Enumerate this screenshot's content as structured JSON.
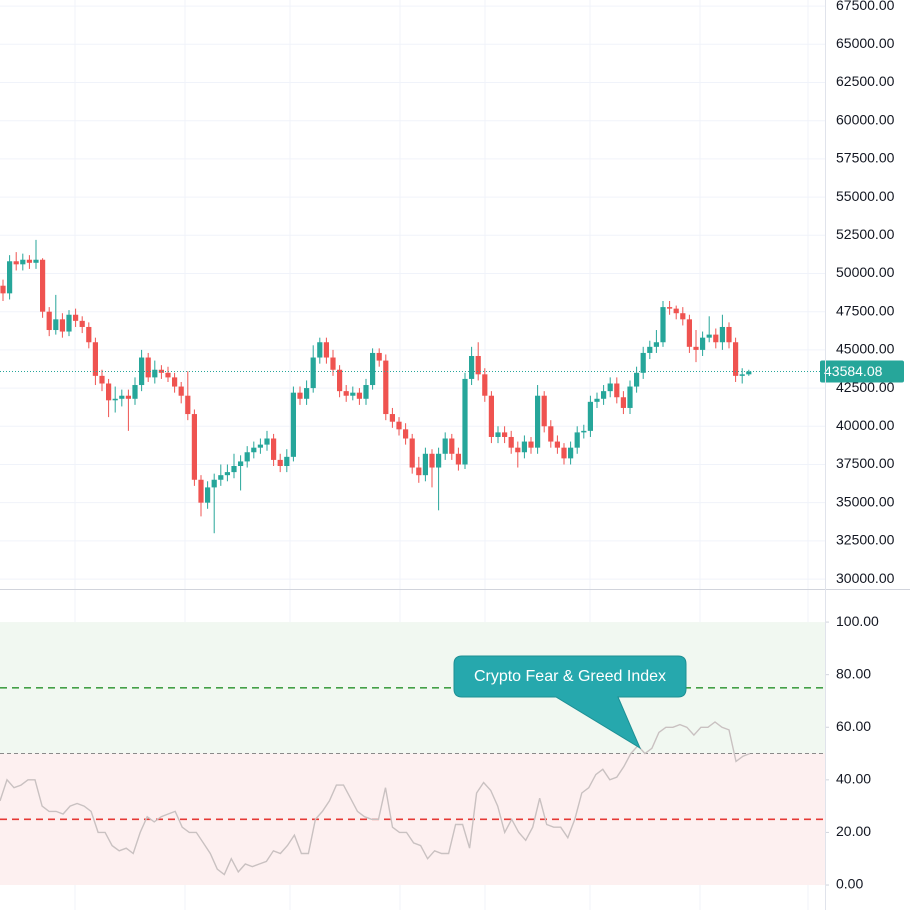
{
  "chart_data": [
    {
      "type": "candlestick",
      "up_color": "#26a69a",
      "down_color": "#ef5350",
      "ylim": [
        29350,
        67900
      ],
      "yticks": [
        {
          "value": 30000,
          "label": "30000.00"
        },
        {
          "value": 32500,
          "label": "32500.00"
        },
        {
          "value": 35000,
          "label": "35000.00"
        },
        {
          "value": 37500,
          "label": "37500.00"
        },
        {
          "value": 40000,
          "label": "40000.00"
        },
        {
          "value": 42500,
          "label": "42500.00"
        },
        {
          "value": 45000,
          "label": "45000.00"
        },
        {
          "value": 47500,
          "label": "47500.00"
        },
        {
          "value": 50000,
          "label": "50000.00"
        },
        {
          "value": 52500,
          "label": "52500.00"
        },
        {
          "value": 55000,
          "label": "55000.00"
        },
        {
          "value": 57500,
          "label": "57500.00"
        },
        {
          "value": 60000,
          "label": "60000.00"
        },
        {
          "value": 62500,
          "label": "62500.00"
        },
        {
          "value": 65000,
          "label": "65000.00"
        },
        {
          "value": 67500,
          "label": "67500.00"
        }
      ],
      "grid": true,
      "last_price": {
        "value": 43584.08,
        "label": "43584.08"
      },
      "open": [
        49200,
        48700,
        50800,
        50600,
        50900,
        50700,
        50900,
        47500,
        46300,
        47000,
        46200,
        47300,
        46900,
        46500,
        45500,
        43300,
        42800,
        41700,
        41800,
        42000,
        41800,
        42700,
        44500,
        43200,
        43700,
        43500,
        43200,
        42600,
        42000,
        40800,
        36500,
        35000,
        36000,
        36500,
        36800,
        37000,
        37400,
        37700,
        38300,
        38600,
        38800,
        39200,
        37800,
        37400,
        38000,
        42200,
        41800,
        42500,
        44500,
        45500,
        44500,
        43700,
        42300,
        42000,
        42200,
        41800,
        42700,
        44800,
        44300,
        40800,
        40300,
        39800,
        39200,
        37300,
        36800,
        38200,
        37300,
        38200,
        39200,
        38200,
        37500,
        43100,
        44600,
        43400,
        42000,
        39300,
        39600,
        39300,
        38600,
        38300,
        39000,
        38600,
        42000,
        40000,
        39000,
        38600,
        37900,
        38600,
        39600,
        39700,
        41600,
        41800,
        42300,
        42800,
        41900,
        41200,
        42600,
        43500,
        44800,
        45200,
        45500,
        47800,
        47700,
        47400,
        47000,
        45200,
        45000,
        45800,
        46000,
        45500,
        46500,
        45500,
        43300,
        43400
      ],
      "high": [
        49600,
        51200,
        51400,
        51300,
        51200,
        52200,
        51000,
        47800,
        48600,
        47400,
        47600,
        47700,
        47200,
        46800,
        45800,
        43700,
        43100,
        42600,
        42400,
        42400,
        43200,
        45000,
        44800,
        44300,
        44000,
        43900,
        43500,
        42900,
        43600,
        41100,
        36800,
        36400,
        36900,
        37500,
        37500,
        38200,
        38100,
        38700,
        39000,
        39200,
        39700,
        39500,
        38200,
        38500,
        42600,
        42600,
        43000,
        45300,
        45800,
        45800,
        45000,
        44000,
        42700,
        42600,
        42500,
        43100,
        45100,
        45100,
        44700,
        41200,
        40600,
        40200,
        39500,
        38000,
        38600,
        38500,
        38600,
        39600,
        39500,
        38600,
        43500,
        45200,
        45500,
        43800,
        42300,
        40000,
        40000,
        39700,
        39000,
        39400,
        39300,
        42700,
        42300,
        40400,
        39400,
        38900,
        39000,
        40000,
        40100,
        42000,
        42200,
        42700,
        43200,
        43200,
        42300,
        43000,
        43900,
        45200,
        45600,
        46300,
        48200,
        48200,
        47900,
        47800,
        47300,
        46300,
        46200,
        47200,
        46400,
        47300,
        46800,
        45800,
        43800,
        43700
      ],
      "low": [
        48200,
        48300,
        50200,
        50200,
        50300,
        50300,
        47100,
        45900,
        46000,
        45800,
        45900,
        46500,
        46100,
        45100,
        42700,
        42300,
        40600,
        40900,
        41300,
        39700,
        41400,
        42300,
        42900,
        42800,
        43100,
        42900,
        42200,
        41500,
        40400,
        36100,
        34100,
        34600,
        33000,
        36100,
        36400,
        36600,
        35800,
        37300,
        37900,
        38200,
        38400,
        37400,
        37000,
        37000,
        37700,
        41400,
        41400,
        42200,
        44100,
        44100,
        43300,
        41900,
        41600,
        41700,
        41400,
        41400,
        42400,
        43900,
        40400,
        39900,
        39400,
        38800,
        36900,
        36300,
        36400,
        36000,
        34500,
        37800,
        37800,
        37100,
        37200,
        42700,
        43000,
        41600,
        38900,
        38900,
        38900,
        38200,
        37300,
        37900,
        38200,
        38200,
        39600,
        38600,
        38200,
        37500,
        37500,
        38200,
        39200,
        39300,
        41200,
        41400,
        41900,
        41500,
        40800,
        40800,
        42200,
        43100,
        44400,
        44800,
        45200,
        47300,
        47000,
        46600,
        44800,
        44200,
        44600,
        45500,
        45100,
        45000,
        45100,
        42900,
        42800,
        43300
      ],
      "close": [
        48700,
        50800,
        50600,
        50900,
        50700,
        50900,
        47500,
        46300,
        47000,
        46200,
        47300,
        46900,
        46500,
        45500,
        43300,
        42800,
        41700,
        41800,
        42000,
        41800,
        42700,
        44500,
        43200,
        43700,
        43500,
        43200,
        42600,
        42000,
        40800,
        36500,
        35000,
        36000,
        36500,
        36800,
        37000,
        37400,
        37700,
        38300,
        38600,
        38800,
        39200,
        37800,
        37400,
        38000,
        42200,
        41800,
        42500,
        44500,
        45500,
        44500,
        43700,
        42300,
        42000,
        42200,
        41800,
        42700,
        44800,
        44300,
        40800,
        40300,
        39800,
        39200,
        37300,
        36800,
        38200,
        37300,
        38200,
        39200,
        38200,
        37500,
        43100,
        44600,
        43400,
        42000,
        39300,
        39600,
        39300,
        38600,
        38300,
        39000,
        38600,
        42000,
        40000,
        39000,
        38600,
        37900,
        38600,
        39600,
        39700,
        41600,
        41800,
        42300,
        42800,
        41900,
        41200,
        42600,
        43500,
        44800,
        45200,
        45500,
        47800,
        47700,
        47400,
        47000,
        45200,
        45000,
        45800,
        46000,
        45500,
        46500,
        45500,
        43300,
        43400,
        43584
      ]
    },
    {
      "type": "line",
      "annotation": "Crypto Fear & Greed Index",
      "color": "#c9c1c1",
      "ylim": [
        -9.5,
        112.2
      ],
      "yticks": [
        {
          "value": 0,
          "label": "0.00"
        },
        {
          "value": 20,
          "label": "20.00"
        },
        {
          "value": 40,
          "label": "40.00"
        },
        {
          "value": 60,
          "label": "60.00"
        },
        {
          "value": 80,
          "label": "80.00"
        },
        {
          "value": 100,
          "label": "100.00"
        }
      ],
      "bands": [
        {
          "from": 50,
          "to": 100,
          "color": "#f1f8f1"
        },
        {
          "from": 0,
          "to": 50,
          "color": "#fdf0f0"
        }
      ],
      "levels": [
        {
          "value": 75,
          "color": "#43a047"
        },
        {
          "value": 50,
          "color": "#8a8a8a"
        },
        {
          "value": 25,
          "color": "#e53935"
        }
      ],
      "values": [
        32,
        40,
        37,
        38,
        40,
        40,
        30,
        28,
        28,
        27,
        30,
        31,
        30,
        28,
        20,
        20,
        15,
        13,
        14,
        12,
        20,
        26,
        24,
        26,
        27,
        28,
        22,
        20,
        20,
        16,
        12,
        6,
        4,
        10,
        5,
        8,
        7,
        8,
        9,
        13,
        12,
        15,
        19,
        12,
        12,
        25,
        28,
        32,
        38,
        38,
        33,
        28,
        26,
        25,
        25,
        37,
        22,
        20,
        20,
        16,
        15,
        10,
        13,
        12,
        12,
        23,
        23,
        14,
        35,
        39,
        36,
        30,
        20,
        25,
        20,
        17,
        22,
        33,
        23,
        22,
        22,
        18,
        25,
        35,
        37,
        42,
        44,
        40,
        41,
        45,
        50,
        53,
        50,
        52,
        58,
        60,
        60,
        61,
        60,
        57,
        60,
        60,
        62,
        60,
        59,
        47,
        49,
        50
      ]
    }
  ]
}
